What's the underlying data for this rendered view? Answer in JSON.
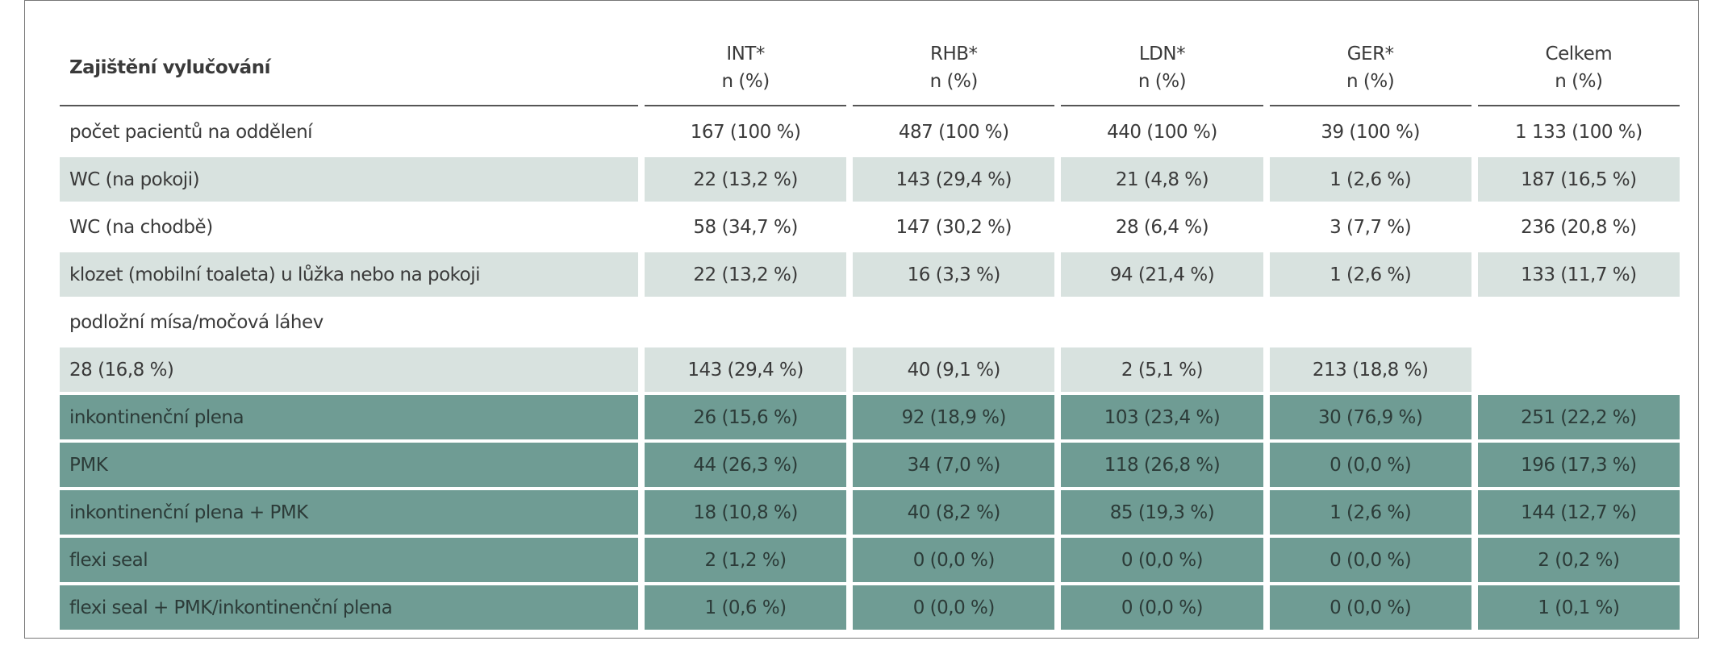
{
  "table": {
    "header": {
      "label": "Zajištění vylučování",
      "columns": [
        {
          "name": "INT*",
          "unit": "n (%)"
        },
        {
          "name": "RHB*",
          "unit": "n (%)"
        },
        {
          "name": "LDN*",
          "unit": "n (%)"
        },
        {
          "name": "GER*",
          "unit": "n (%)"
        },
        {
          "name": "Celkem",
          "unit": "n (%)"
        }
      ]
    },
    "rows": [
      {
        "label": "počet pacientů na oddělení",
        "cells": [
          "167 (100 %)",
          "487 (100 %)",
          "440 (100 %)",
          "39 (100 %)",
          "1 133 (100 %)"
        ]
      },
      {
        "label": "WC (na pokoji)",
        "cells": [
          "22 (13,2 %)",
          "143 (29,4 %)",
          "21 (4,8 %)",
          "1 (2,6 %)",
          "187 (16,5 %)"
        ]
      },
      {
        "label": "WC (na chodbě)",
        "cells": [
          "58 (34,7 %)",
          "147 (30,2 %)",
          "28 (6,4 %)",
          "3 (7,7 %)",
          "236 (20,8 %)"
        ]
      },
      {
        "label": "klozet (mobilní toaleta) u lůžka nebo na pokoji",
        "cells": [
          "22 (13,2 %)",
          "16 (3,3 %)",
          "94 (21,4 %)",
          "1 (2,6 %)",
          "133 (11,7 %)"
        ]
      },
      {
        "label": "podložní mísa/močová láhev",
        "cells": []
      },
      {
        "label": "28 (16,8 %)",
        "cells": [
          "143 (29,4 %)",
          "40 (9,1 %)",
          "2 (5,1 %)",
          "213 (18,8 %)"
        ]
      },
      {
        "label": "inkontinenční plena",
        "cells": [
          "26 (15,6 %)",
          "92 (18,9 %)",
          "103 (23,4 %)",
          "30 (76,9 %)",
          "251 (22,2 %)"
        ]
      },
      {
        "label": "PMK",
        "cells": [
          "44 (26,3 %)",
          "34 (7,0 %)",
          "118 (26,8 %)",
          "0 (0,0 %)",
          "196 (17,3 %)"
        ]
      },
      {
        "label": "inkontinenční plena + PMK",
        "cells": [
          "18 (10,8 %)",
          "40 (8,2 %)",
          "85 (19,3 %)",
          "1 (2,6 %)",
          "144 (12,7 %)"
        ]
      },
      {
        "label": "flexi seal",
        "cells": [
          "2 (1,2 %)",
          "0 (0,0 %)",
          "0 (0,0 %)",
          "0 (0,0 %)",
          "2 (0,2 %)"
        ]
      },
      {
        "label": "flexi seal + PMK/inkontinenční plena",
        "cells": [
          "1 (0,6 %)",
          "0 (0,0 %)",
          "0 (0,0 %)",
          "0 (0,0 %)",
          "1 (0,1 %)"
        ]
      }
    ]
  }
}
